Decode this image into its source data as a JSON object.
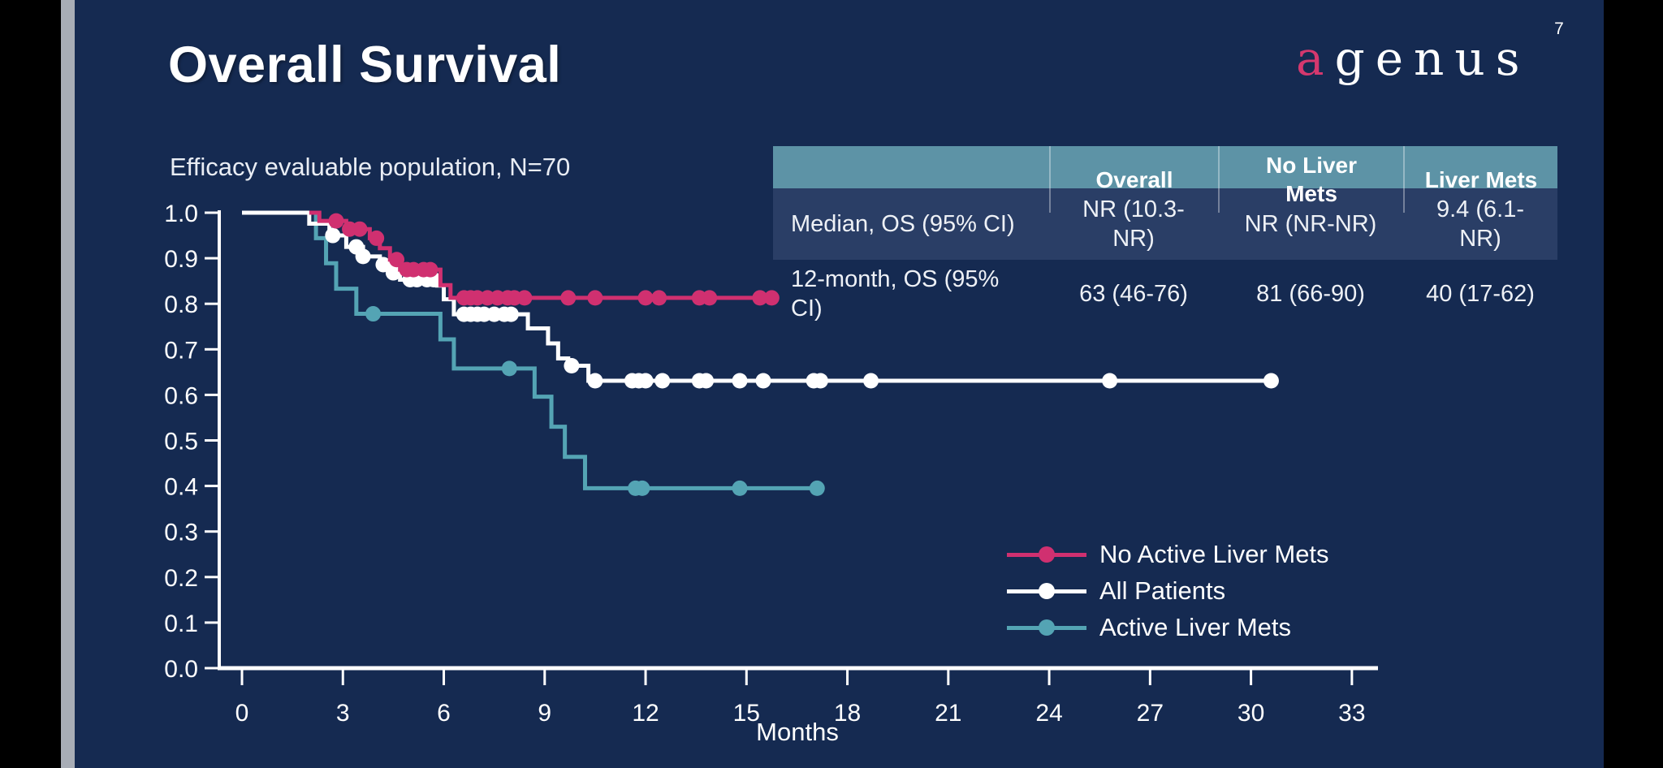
{
  "page": {
    "number": "7"
  },
  "header": {
    "title": "Overall Survival",
    "subtitle": "Efficacy evaluable population, N=70"
  },
  "logo": {
    "first_letter": "a",
    "rest": "genus"
  },
  "table": {
    "headers": [
      "",
      "Overall",
      "No Liver Mets",
      "Liver Mets"
    ],
    "rows": [
      {
        "label": "Median, OS (95% CI)",
        "overall": "NR (10.3-NR)",
        "no_liver_mets": "NR (NR-NR)",
        "liver_mets": "9.4 (6.1-NR)"
      },
      {
        "label": "12-month, OS (95% CI)",
        "overall": "63 (46-76)",
        "no_liver_mets": "81 (66-90)",
        "liver_mets": "40 (17-62)"
      }
    ]
  },
  "legend": {
    "items": [
      {
        "label": "No Active Liver Mets",
        "color": "#d03070"
      },
      {
        "label": "All Patients",
        "color": "#ffffff"
      },
      {
        "label": "Active Liver Mets",
        "color": "#54a4b4"
      }
    ]
  },
  "chart_data": {
    "type": "line",
    "subtype": "kaplan-meier-step",
    "title": "Overall Survival",
    "xlabel": "Months",
    "ylabel": "",
    "xlim": [
      0,
      34
    ],
    "ylim": [
      0.0,
      1.0
    ],
    "grid": false,
    "legend_position": "lower-right",
    "x_ticks": [
      0,
      3,
      6,
      9,
      12,
      15,
      18,
      21,
      24,
      27,
      30,
      33
    ],
    "y_ticks": [
      0.0,
      0.1,
      0.2,
      0.3,
      0.4,
      0.5,
      0.6,
      0.7,
      0.8,
      0.9,
      1.0
    ],
    "series": [
      {
        "name": "Active Liver Mets",
        "color": "#54a4b4",
        "steps": [
          [
            2.1,
            1.0
          ],
          [
            2.2,
            0.944
          ],
          [
            2.5,
            0.889
          ],
          [
            2.8,
            0.833
          ],
          [
            3.4,
            0.778
          ],
          [
            5.9,
            0.722
          ],
          [
            6.3,
            0.658
          ],
          [
            8.7,
            0.596
          ],
          [
            9.2,
            0.53
          ],
          [
            9.6,
            0.464
          ],
          [
            10.2,
            0.395
          ]
        ],
        "end": 17.1,
        "censors": [
          3.9,
          7.95,
          11.7,
          11.9,
          14.8,
          17.1
        ]
      },
      {
        "name": "All Patients",
        "color": "#ffffff",
        "steps": [
          [
            0,
            1.0
          ],
          [
            2.0,
            0.976
          ],
          [
            2.6,
            0.95
          ],
          [
            3.1,
            0.925
          ],
          [
            3.6,
            0.904
          ],
          [
            4.1,
            0.886
          ],
          [
            4.4,
            0.868
          ],
          [
            4.7,
            0.853
          ],
          [
            5.8,
            0.84
          ],
          [
            6.0,
            0.81
          ],
          [
            6.3,
            0.777
          ],
          [
            8.5,
            0.746
          ],
          [
            9.1,
            0.713
          ],
          [
            9.4,
            0.68
          ],
          [
            9.7,
            0.664
          ],
          [
            10.3,
            0.631
          ]
        ],
        "end": 30.6,
        "censors": [
          2.7,
          3.4,
          3.6,
          4.2,
          4.5,
          5.0,
          5.2,
          5.5,
          5.7,
          6.6,
          6.8,
          7.0,
          7.2,
          7.5,
          7.8,
          8.0,
          9.8,
          10.5,
          11.6,
          11.8,
          12.0,
          12.5,
          13.6,
          13.8,
          14.8,
          15.5,
          17.0,
          17.2,
          18.7,
          25.8,
          30.6
        ]
      },
      {
        "name": "No Active Liver Mets",
        "color": "#d03070",
        "steps": [
          [
            2.0,
            1.0
          ],
          [
            2.3,
            0.982
          ],
          [
            3.1,
            0.964
          ],
          [
            3.8,
            0.944
          ],
          [
            4.1,
            0.922
          ],
          [
            4.4,
            0.897
          ],
          [
            4.7,
            0.875
          ],
          [
            5.9,
            0.841
          ],
          [
            6.2,
            0.813
          ]
        ],
        "end": 15.75,
        "censors": [
          2.8,
          3.2,
          3.5,
          4.0,
          4.6,
          4.9,
          5.1,
          5.4,
          5.6,
          6.6,
          6.8,
          7.0,
          7.3,
          7.6,
          7.9,
          8.1,
          8.4,
          9.7,
          10.5,
          12.0,
          12.4,
          13.6,
          13.9,
          15.4,
          15.75
        ]
      }
    ]
  }
}
